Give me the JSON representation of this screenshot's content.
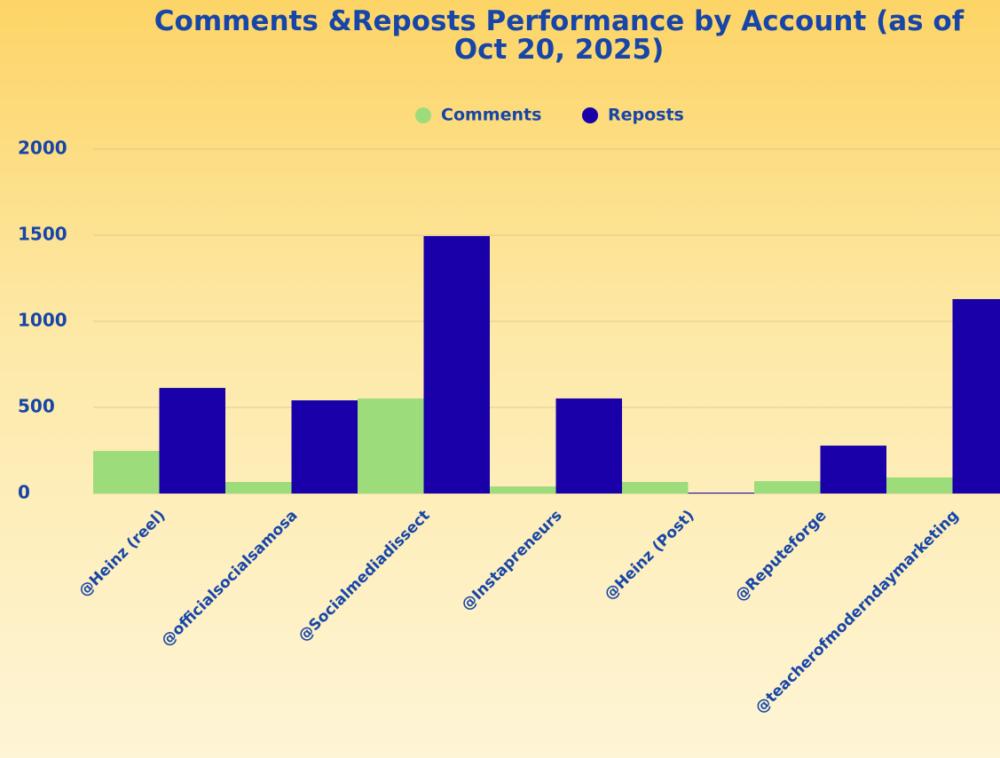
{
  "chart_data": {
    "type": "bar",
    "title": "Comments &Reposts Performance by Account (as of Oct 20, 2025)",
    "categories": [
      "@Heinz (reel)",
      "@officialsocialsamosa",
      "@Socialmediadissect",
      "@Instapreneurs",
      "@Heinz (Post)",
      "@Reputeforge",
      "@teacherofmoderndaymarketing"
    ],
    "series": [
      {
        "name": "Comments",
        "color": "#9ddc7a",
        "values": [
          247,
          67,
          552,
          41,
          67,
          72,
          93
        ]
      },
      {
        "name": "Reposts",
        "color": "#1a00a8",
        "values": [
          613,
          541,
          1495,
          552,
          5,
          278,
          1129
        ]
      }
    ],
    "ylim": [
      0,
      2000
    ],
    "yticks": [
      0,
      500,
      1000,
      1500,
      2000
    ],
    "grid": true,
    "legend": "top"
  }
}
